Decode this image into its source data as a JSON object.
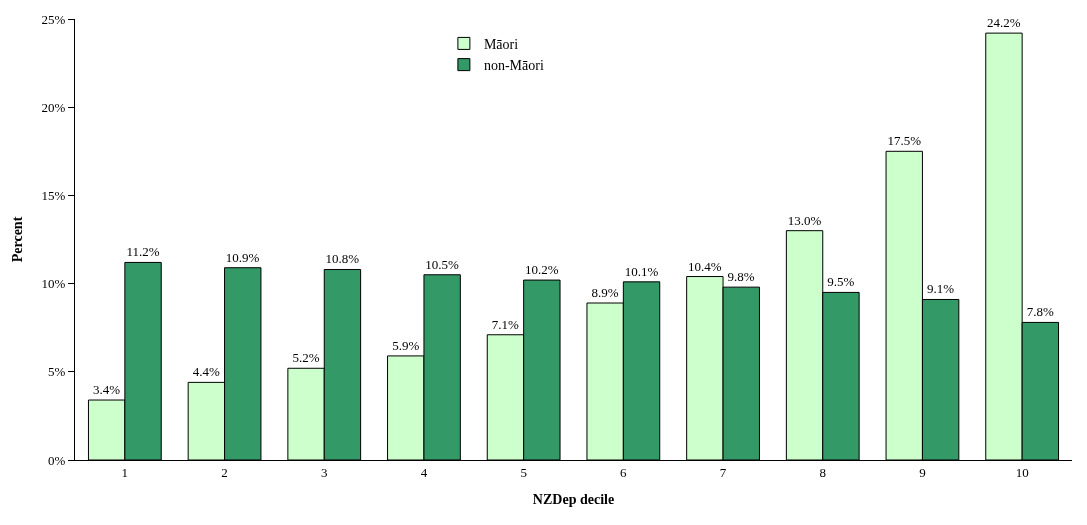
{
  "chart_data": {
    "type": "bar",
    "xlabel": "NZDep decile",
    "ylabel": "Percent",
    "categories": [
      "1",
      "2",
      "3",
      "4",
      "5",
      "6",
      "7",
      "8",
      "9",
      "10"
    ],
    "series": [
      {
        "name": "Māori",
        "color": "#ccffcc",
        "values": [
          3.4,
          4.4,
          5.2,
          5.9,
          7.1,
          8.9,
          10.4,
          13.0,
          17.5,
          24.2
        ],
        "value_labels": [
          "3.4%",
          "4.4%",
          "5.2%",
          "5.9%",
          "7.1%",
          "8.9%",
          "10.4%",
          "13.0%",
          "17.5%",
          "24.2%"
        ]
      },
      {
        "name": "non-Māori",
        "color": "#339966",
        "values": [
          11.2,
          10.9,
          10.8,
          10.5,
          10.2,
          10.1,
          9.8,
          9.5,
          9.1,
          7.8
        ],
        "value_labels": [
          "11.2%",
          "10.9%",
          "10.8%",
          "10.5%",
          "10.2%",
          "10.1%",
          "9.8%",
          "9.5%",
          "9.1%",
          "7.8%"
        ]
      }
    ],
    "ylim": [
      0,
      25
    ],
    "yticks": [
      {
        "value": 0,
        "label": "0%"
      },
      {
        "value": 5,
        "label": "5%"
      },
      {
        "value": 10,
        "label": "10%"
      },
      {
        "value": 15,
        "label": "15%"
      },
      {
        "value": 20,
        "label": "20%"
      },
      {
        "value": 25,
        "label": "25%"
      }
    ],
    "legend": "top"
  }
}
